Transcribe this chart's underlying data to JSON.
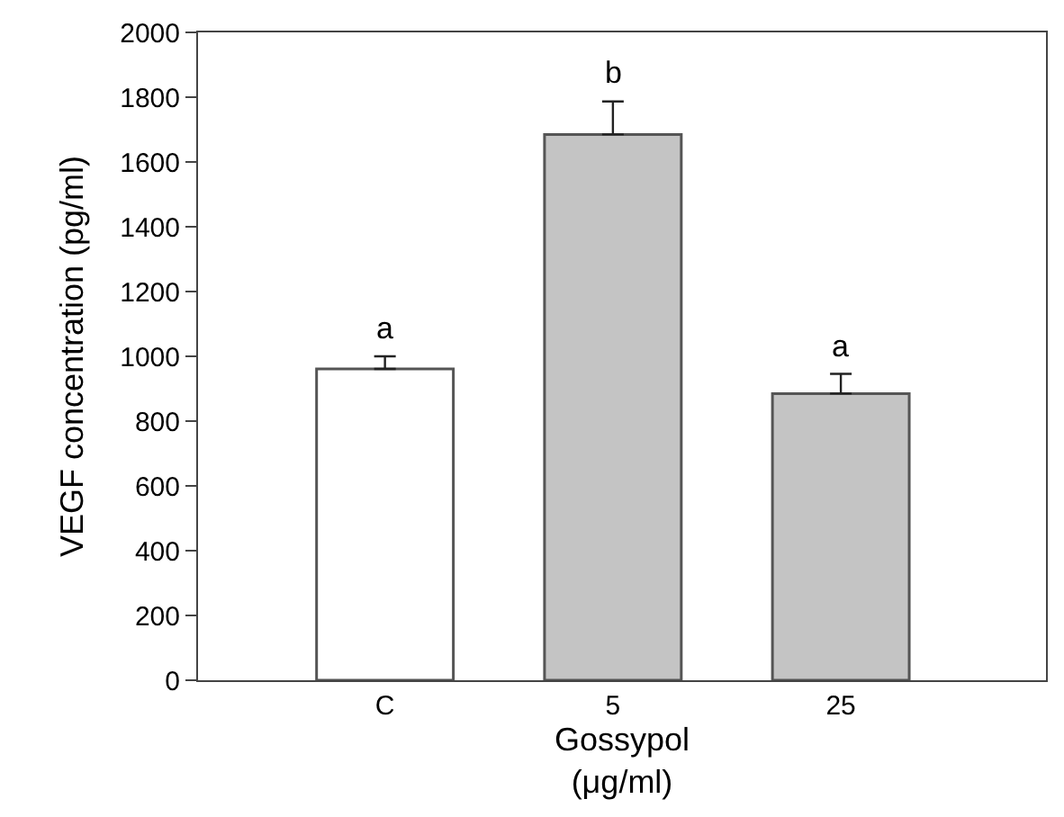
{
  "chart_data": {
    "type": "bar",
    "xlabel": "Gossypol\n(μg/ml)",
    "ylabel": "VEGF concentration (pg/ml)",
    "categories": [
      "C",
      "5",
      "25"
    ],
    "values": [
      961,
      1685,
      885
    ],
    "colors": [
      "#ffffff",
      "#c4c4c4",
      "#c4c4c4"
    ],
    "errors": [
      [
        961,
        1000
      ],
      [
        1685,
        1787
      ],
      [
        885,
        946
      ]
    ],
    "ylim": [
      0,
      2000
    ],
    "yticks": [
      0,
      200,
      400,
      600,
      800,
      1000,
      1200,
      1400,
      1600,
      1800,
      2000
    ],
    "annotations": [
      {
        "text": "a",
        "x": "C",
        "y": 1000
      },
      {
        "text": "b",
        "x": "5",
        "y": 1787
      },
      {
        "text": "a",
        "x": "25",
        "y": 946
      }
    ],
    "marker": "none"
  }
}
